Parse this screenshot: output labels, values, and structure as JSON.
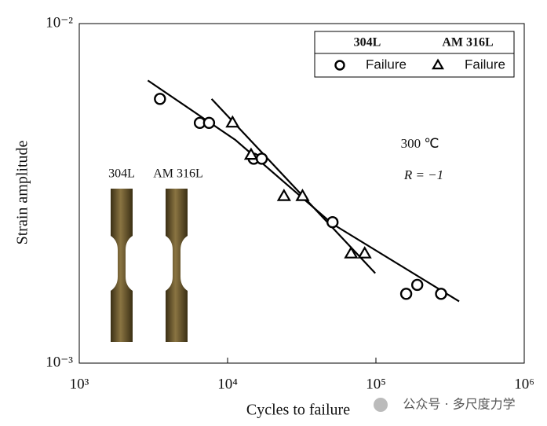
{
  "chart_data": {
    "type": "scatter",
    "xlabel": "Cycles to failure",
    "ylabel": "Strain amplitude",
    "xlog": true,
    "ylog": true,
    "xlim": [
      1000,
      1000000
    ],
    "ylim": [
      0.001,
      0.01
    ],
    "xticks": [
      {
        "value": 1000,
        "label": "10³"
      },
      {
        "value": 10000,
        "label": "10⁴"
      },
      {
        "value": 100000,
        "label": "10⁵"
      },
      {
        "value": 1000000,
        "label": "10⁶"
      }
    ],
    "yticks": [
      {
        "value": 0.001,
        "label": "10⁻³"
      },
      {
        "value": 0.01,
        "label": "10⁻²"
      }
    ],
    "legend_position": "upper right",
    "legend_headers": [
      "304L",
      "AM 316L"
    ],
    "series": [
      {
        "name": "Failure",
        "marker": "circle",
        "color": "#000000",
        "x": [
          3500,
          6500,
          7500,
          15000,
          17000,
          51000,
          160000,
          190000,
          275000
        ],
        "values": [
          0.006,
          0.0051,
          0.0051,
          0.004,
          0.004,
          0.0026,
          0.0016,
          0.0017,
          0.0016
        ]
      },
      {
        "name": "Failure",
        "marker": "triangle",
        "color": "#000000",
        "x": [
          10800,
          14400,
          24000,
          32000,
          68000,
          84000
        ],
        "values": [
          0.0051,
          0.0041,
          0.0031,
          0.0031,
          0.0021,
          0.0021
        ]
      }
    ],
    "fits": [
      {
        "color": "#000000",
        "x": [
          2900,
          11300,
          51000,
          364000
        ],
        "values": [
          0.0068,
          0.00454,
          0.00257,
          0.00152
        ]
      },
      {
        "color": "#000000",
        "x": [
          7800,
          99000
        ],
        "values": [
          0.006,
          0.00184
        ]
      }
    ],
    "annotations": [
      "300 ℃",
      "R = −1"
    ],
    "inset_labels": [
      "304L",
      "AM 316L"
    ],
    "watermark": "公众号 · 多尺度力学"
  }
}
